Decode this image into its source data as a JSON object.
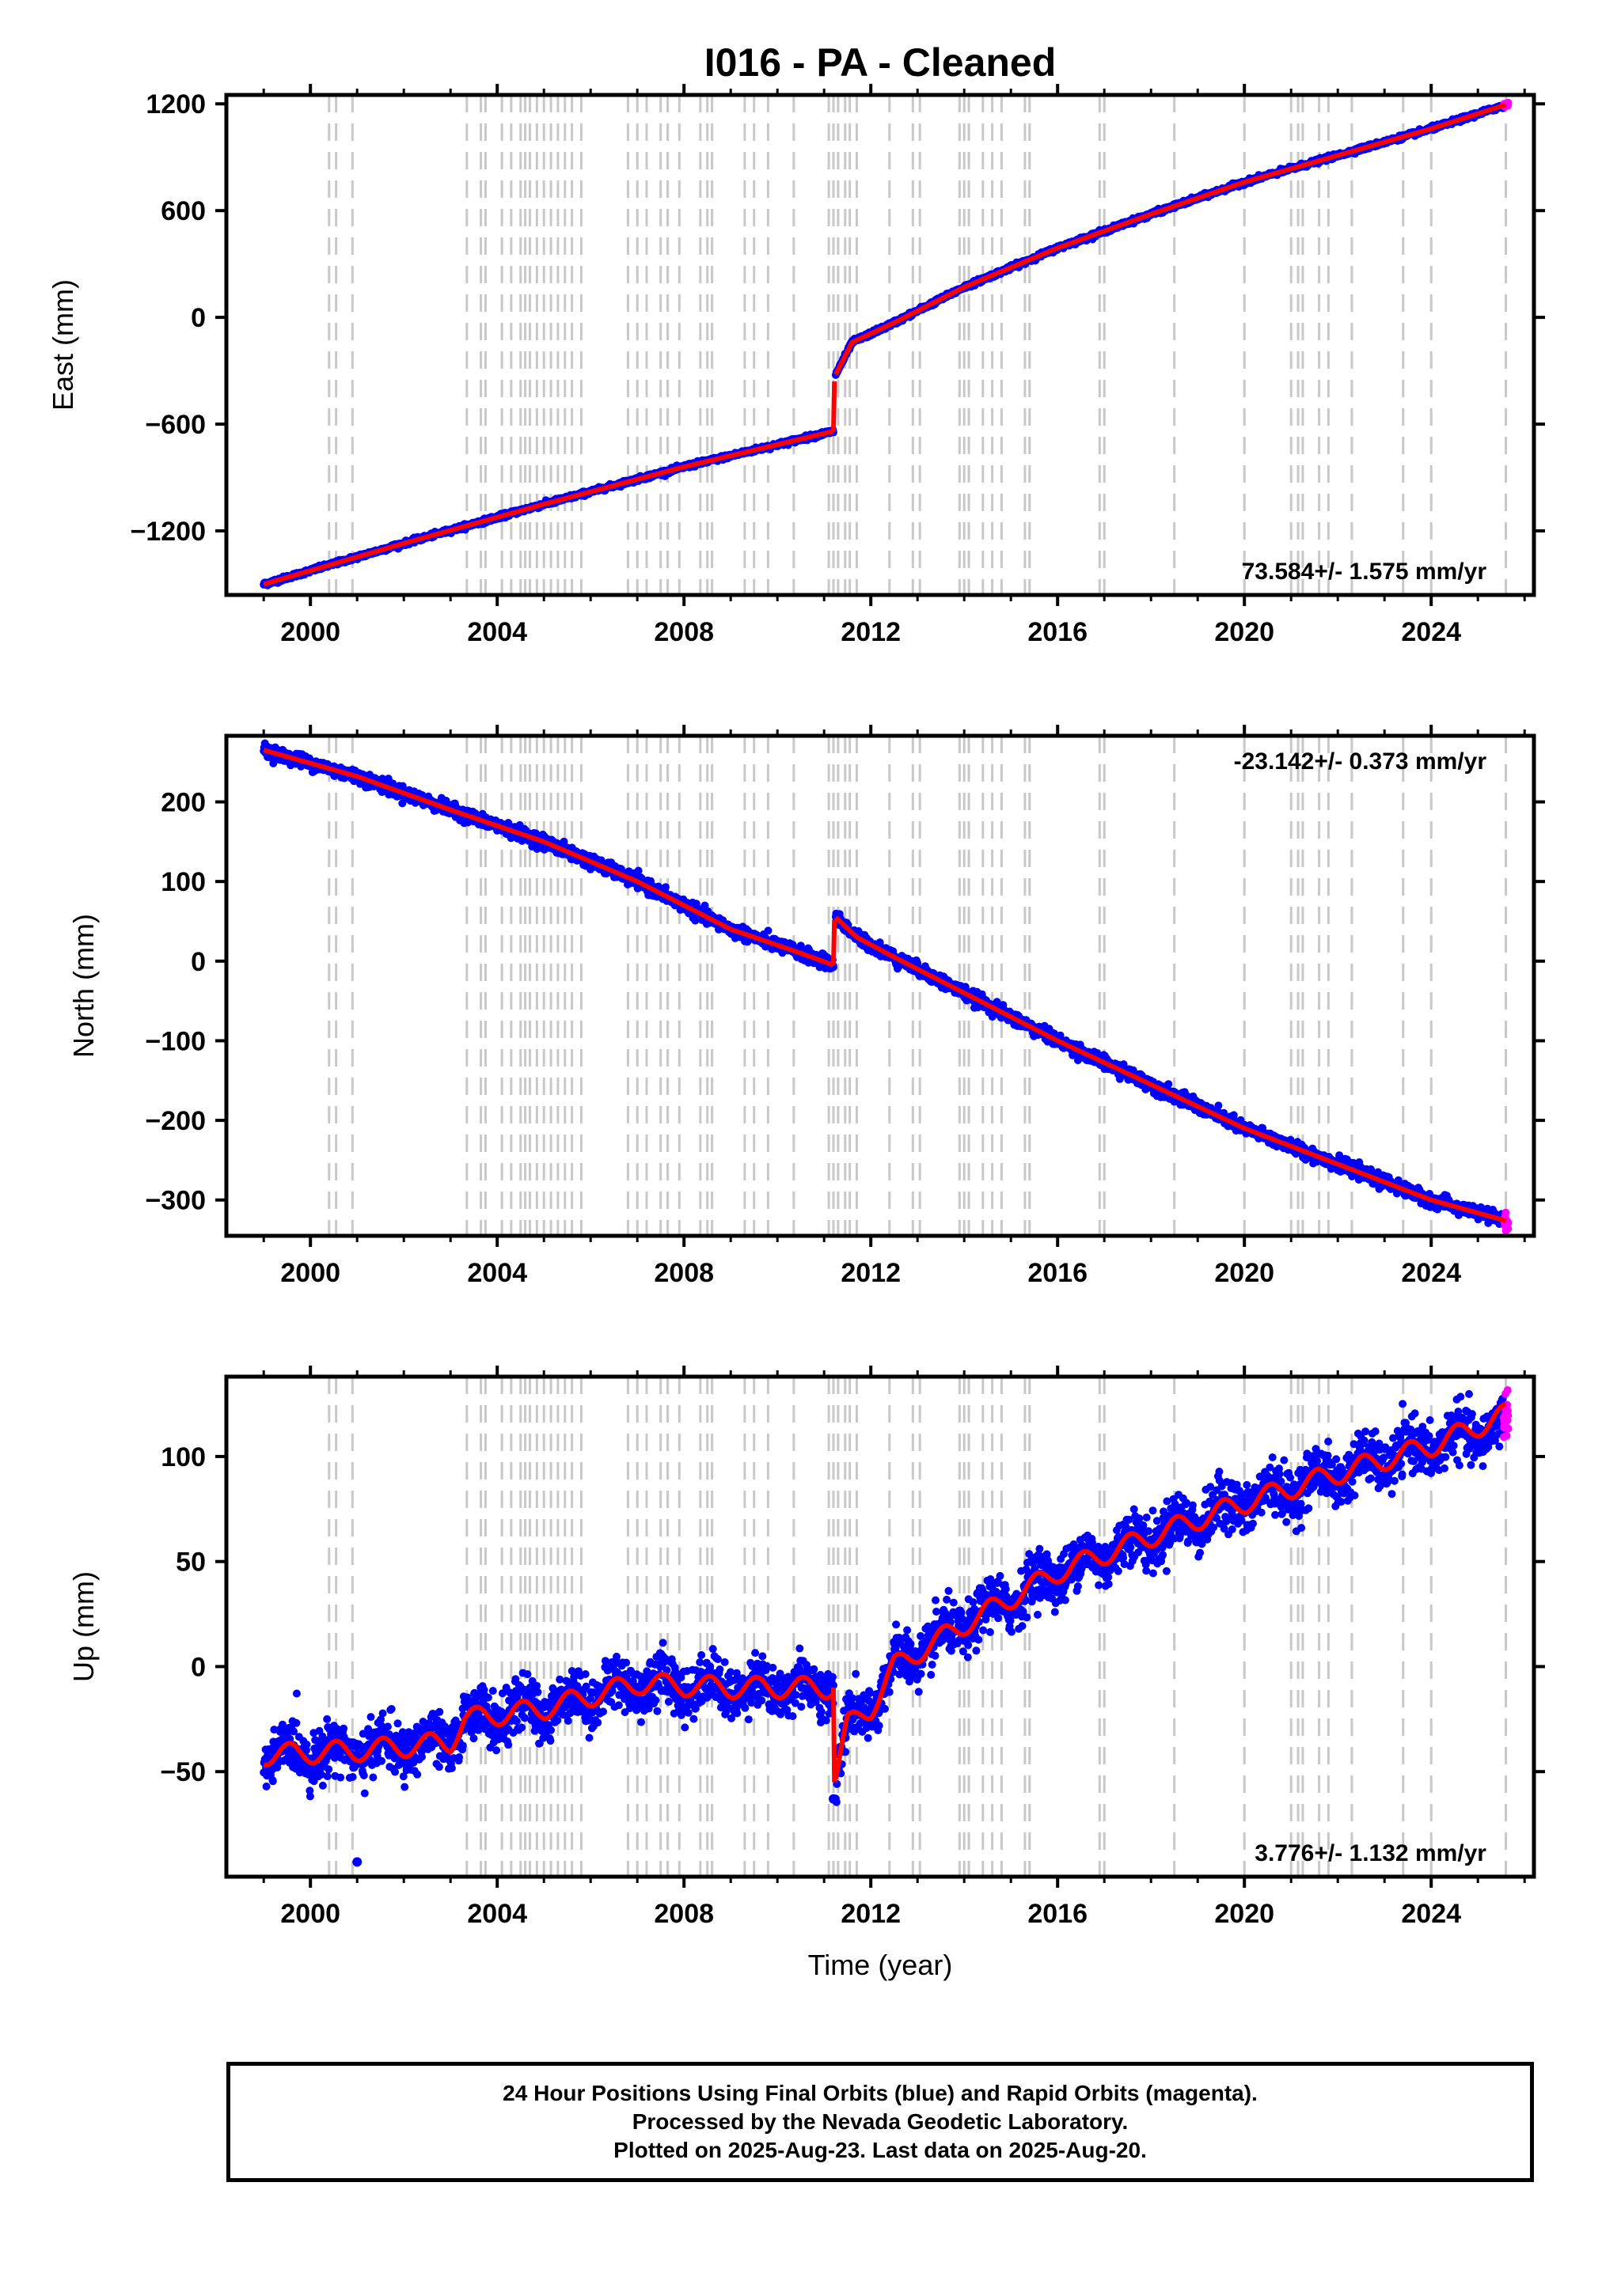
{
  "title": "I016  - PA - Cleaned",
  "colors": {
    "final_points": "#0000ff",
    "rapid_points": "#ff00ff",
    "model_line": "#ff0000",
    "event_lines": "#c8c8c8",
    "axes": "#000000"
  },
  "footer": {
    "line1": "24 Hour Positions Using Final Orbits (blue) and Rapid Orbits (magenta).",
    "line2": "Processed by the Nevada Geodetic Laboratory.",
    "line3": "Plotted on 2025-Aug-23. Last data on 2025-Aug-20."
  },
  "chart_data": [
    {
      "type": "scatter",
      "component": "East",
      "ylabel": "East (mm)",
      "xlabel": "",
      "xlim": [
        1998.2,
        2026.2
      ],
      "ylim": [
        -1560,
        1250
      ],
      "xticks": [
        2000,
        2004,
        2008,
        2012,
        2016,
        2020,
        2024
      ],
      "yticks": [
        -1200,
        -600,
        0,
        600,
        1200
      ],
      "annotation": "73.584+/- 1.575 mm/yr",
      "annotation_position": "bottom-right",
      "series": [
        {
          "key": "final",
          "color": "#0000ff",
          "segments": [
            {
              "x": [
                1999.0,
                2002.0,
                2005.0,
                2008.0,
                2011.2
              ],
              "y": [
                -1500,
                -1270,
                -1050,
                -840,
                -640
              ]
            },
            {
              "x": [
                2011.25,
                2011.6,
                2012.5,
                2014.0,
                2016.0,
                2018.0,
                2020.0,
                2022.0,
                2024.0,
                2025.55
              ],
              "y": [
                -320,
                -140,
                -30,
                170,
                390,
                580,
                760,
                910,
                1060,
                1190
              ]
            }
          ],
          "noise": 6
        },
        {
          "key": "rapid",
          "color": "#ff00ff",
          "segments": [
            {
              "x": [
                2025.55,
                2025.65
              ],
              "y": [
                1190,
                1200
              ]
            }
          ],
          "noise": 4
        }
      ],
      "model": {
        "segments": [
          {
            "x": [
              1999.0,
              2002.0,
              2005.0,
              2008.0,
              2011.2
            ],
            "y": [
              -1500,
              -1270,
              -1050,
              -840,
              -640
            ]
          },
          {
            "x": [
              2011.2,
              2011.22
            ],
            "y": [
              -640,
              -360
            ]
          },
          {
            "x": [
              2011.25,
              2011.6,
              2012.5,
              2014.0,
              2016.0,
              2018.0,
              2020.0,
              2022.0,
              2024.0,
              2025.6
            ],
            "y": [
              -320,
              -140,
              -30,
              170,
              390,
              580,
              760,
              910,
              1060,
              1195
            ]
          }
        ]
      }
    },
    {
      "type": "scatter",
      "component": "North",
      "ylabel": "North (mm)",
      "xlabel": "",
      "xlim": [
        1998.2,
        2026.2
      ],
      "ylim": [
        -345,
        283
      ],
      "xticks": [
        2000,
        2004,
        2008,
        2012,
        2016,
        2020,
        2024
      ],
      "yticks": [
        -300,
        -200,
        -100,
        0,
        100,
        200
      ],
      "annotation": "-23.142+/- 0.373 mm/yr",
      "annotation_position": "top-right",
      "series": [
        {
          "key": "final",
          "color": "#0000ff",
          "segments": [
            {
              "x": [
                1999.0,
                2001.0,
                2003.0,
                2005.0,
                2007.0,
                2009.0,
                2010.5,
                2011.2
              ],
              "y": [
                265,
                232,
                190,
                150,
                100,
                40,
                10,
                -5
              ]
            },
            {
              "x": [
                2011.25,
                2011.7,
                2012.5,
                2014.0,
                2016.0,
                2018.0,
                2020.0,
                2022.0,
                2024.0,
                2025.55
              ],
              "y": [
                55,
                30,
                5,
                -40,
                -100,
                -155,
                -210,
                -255,
                -300,
                -325
              ]
            }
          ],
          "noise": 4
        },
        {
          "key": "rapid",
          "color": "#ff00ff",
          "segments": [
            {
              "x": [
                2025.55,
                2025.65
              ],
              "y": [
                -323,
                -330
              ]
            }
          ],
          "noise": 4
        }
      ],
      "model": {
        "segments": [
          {
            "x": [
              1999.0,
              2001.0,
              2003.0,
              2005.0,
              2007.0,
              2009.0,
              2010.5,
              2011.2
            ],
            "y": [
              265,
              232,
              190,
              150,
              100,
              40,
              10,
              -5
            ]
          },
          {
            "x": [
              2011.2,
              2011.22
            ],
            "y": [
              -5,
              52
            ]
          },
          {
            "x": [
              2011.25,
              2011.7,
              2012.5,
              2014.0,
              2016.0,
              2018.0,
              2020.0,
              2022.0,
              2024.0,
              2025.6
            ],
            "y": [
              55,
              30,
              5,
              -40,
              -100,
              -155,
              -210,
              -255,
              -300,
              -326
            ]
          }
        ]
      }
    },
    {
      "type": "scatter",
      "component": "Up",
      "ylabel": "Up (mm)",
      "xlabel": "Time (year)",
      "xlim": [
        1998.2,
        2026.2
      ],
      "ylim": [
        -100,
        138
      ],
      "xticks": [
        2000,
        2004,
        2008,
        2012,
        2016,
        2020,
        2024
      ],
      "yticks": [
        -50,
        0,
        50,
        100
      ],
      "annotation": "3.776+/- 1.132 mm/yr",
      "annotation_position": "bottom-right",
      "series": [
        {
          "key": "final",
          "color": "#0000ff",
          "segments": [
            {
              "x": [
                1999.0,
                2001.0,
                2003.0,
                2003.3,
                2005.0,
                2007.0,
                2009.0,
                2011.2
              ],
              "y": [
                -42,
                -40,
                -36,
                -25,
                -20,
                -8,
                -10,
                -10
              ]
            },
            {
              "x": [
                2011.25,
                2011.5,
                2012.0,
                2012.5,
                2014.0,
                2016.0,
                2018.0,
                2020.0,
                2022.0,
                2024.0,
                2025.55
              ],
              "y": [
                -52,
                -28,
                -20,
                0,
                20,
                45,
                62,
                78,
                92,
                105,
                115
              ]
            }
          ],
          "noise": 6,
          "seasonal_amplitude": 5
        },
        {
          "key": "rapid",
          "color": "#ff00ff",
          "segments": [
            {
              "x": [
                2025.55,
                2025.65
              ],
              "y": [
                116,
                124
              ]
            }
          ],
          "noise": 5
        }
      ],
      "model": {
        "segments": [
          {
            "x": [
              1999.0,
              2001.0,
              2003.0,
              2003.3,
              2005.0,
              2007.0,
              2009.0,
              2011.2
            ],
            "y": [
              -42,
              -40,
              -36,
              -25,
              -20,
              -8,
              -10,
              -10
            ]
          },
          {
            "x": [
              2011.2,
              2011.22
            ],
            "y": [
              -10,
              -55
            ]
          },
          {
            "x": [
              2011.25,
              2011.5,
              2012.0,
              2012.5,
              2014.0,
              2016.0,
              2018.0,
              2020.0,
              2022.0,
              2024.0,
              2025.6
            ],
            "y": [
              -52,
              -28,
              -20,
              0,
              20,
              45,
              62,
              78,
              92,
              105,
              120
            ]
          }
        ],
        "seasonal_amplitude": 5
      },
      "outliers": {
        "x": [
          2001.0,
          2011.2
        ],
        "y": [
          -93,
          -63
        ]
      }
    }
  ],
  "event_years": [
    2000.4,
    2000.55,
    2000.9,
    2003.35,
    2003.65,
    2003.75,
    2004.1,
    2004.3,
    2004.5,
    2004.6,
    2004.7,
    2004.85,
    2005.0,
    2005.15,
    2005.3,
    2005.45,
    2005.6,
    2005.8,
    2006.8,
    2007.0,
    2007.2,
    2007.5,
    2007.65,
    2007.9,
    2008.35,
    2008.5,
    2008.6,
    2009.3,
    2009.5,
    2009.8,
    2010.35,
    2011.1,
    2011.2,
    2011.3,
    2011.45,
    2011.55,
    2011.7,
    2012.4,
    2012.9,
    2013.05,
    2013.9,
    2014.0,
    2014.1,
    2014.4,
    2014.6,
    2014.8,
    2015.3,
    2015.4,
    2016.9,
    2017.0,
    2018.5,
    2020.0,
    2021.0,
    2021.15,
    2021.25,
    2021.6,
    2021.8,
    2022.3,
    2023.4,
    2024.0,
    2025.6
  ]
}
